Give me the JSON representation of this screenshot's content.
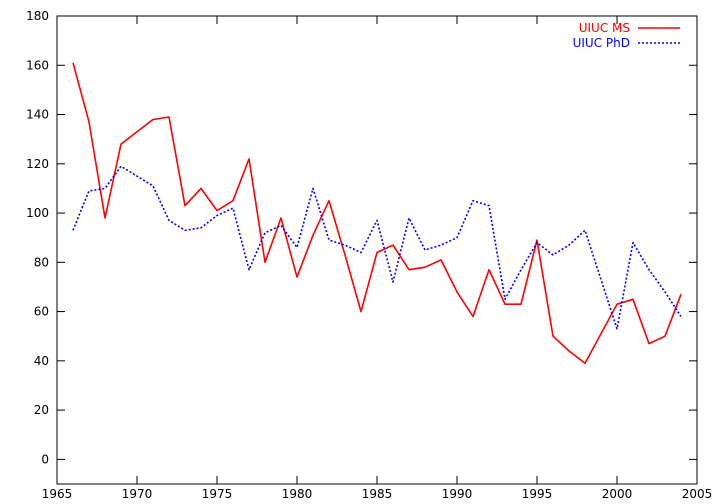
{
  "chart_data": {
    "type": "line",
    "title": "",
    "xlabel": "",
    "ylabel": "",
    "xlim": [
      1965,
      2005
    ],
    "ylim": [
      -10,
      180
    ],
    "xticks": [
      1965,
      1970,
      1975,
      1980,
      1985,
      1990,
      1995,
      2000,
      2005
    ],
    "yticks": [
      0,
      20,
      40,
      60,
      80,
      100,
      120,
      140,
      160,
      180
    ],
    "grid": false,
    "legend_position": "top-right",
    "series": [
      {
        "name": "UIUC MS",
        "color": "#ff0000",
        "style": "solid",
        "x": [
          1966,
          1967,
          1968,
          1969,
          1970,
          1971,
          1972,
          1973,
          1974,
          1975,
          1976,
          1977,
          1978,
          1979,
          1980,
          1981,
          1982,
          1983,
          1984,
          1985,
          1986,
          1987,
          1988,
          1989,
          1990,
          1991,
          1992,
          1993,
          1994,
          1995,
          1996,
          1997,
          1998,
          1999,
          2000,
          2001,
          2002,
          2003,
          2004
        ],
        "values": [
          161,
          137,
          98,
          128,
          133,
          138,
          139,
          103,
          110,
          101,
          105,
          122,
          80,
          98,
          74,
          91,
          105,
          83,
          60,
          84,
          87,
          77,
          78,
          81,
          68,
          58,
          77,
          63,
          63,
          89,
          50,
          44,
          39,
          51,
          63,
          65,
          47,
          50,
          67
        ]
      },
      {
        "name": "UIUC PhD",
        "color": "#0000ff",
        "style": "dotted",
        "x": [
          1966,
          1967,
          1968,
          1969,
          1970,
          1971,
          1972,
          1973,
          1974,
          1975,
          1976,
          1977,
          1978,
          1979,
          1980,
          1981,
          1982,
          1983,
          1984,
          1985,
          1986,
          1987,
          1988,
          1989,
          1990,
          1991,
          1992,
          1993,
          1994,
          1995,
          1996,
          1997,
          1998,
          1999,
          2000,
          2001,
          2002,
          2003,
          2004
        ],
        "values": [
          93,
          109,
          110,
          119,
          115,
          111,
          97,
          93,
          94,
          99,
          102,
          77,
          92,
          95,
          86,
          110,
          89,
          87,
          84,
          97,
          72,
          98,
          85,
          87,
          90,
          105,
          103,
          65,
          77,
          88,
          83,
          87,
          93,
          73,
          53,
          88,
          77,
          68,
          58
        ]
      }
    ]
  }
}
